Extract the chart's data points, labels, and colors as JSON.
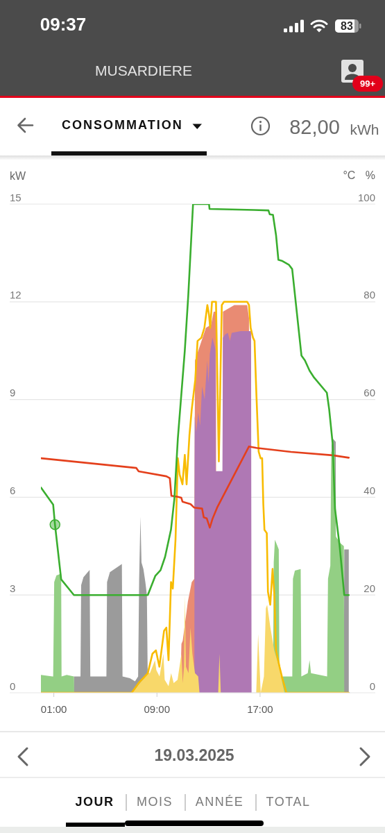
{
  "chart_data": {
    "type": "area",
    "title": "CONSOMMATION",
    "subtitle": "19.03.2025",
    "ylabel": "kW",
    "y2label": "°C %",
    "annotations": [
      "09:37",
      "83",
      "MUSARDIERE",
      "99+",
      "82,00",
      "kWh",
      "JOUR",
      "MOIS",
      "ANNÉE",
      "TOTAL"
    ],
    "xlim": [
      0,
      24
    ],
    "xticks": [
      {
        "value": 1,
        "label": "01:00"
      },
      {
        "value": 9,
        "label": "09:00"
      },
      {
        "value": 17,
        "label": "17:00"
      }
    ],
    "ylim": [
      0,
      15
    ],
    "yticks": [
      0,
      3,
      6,
      9,
      12,
      15
    ],
    "y2lim": [
      0,
      100
    ],
    "y2ticks": [
      0,
      20,
      40,
      60,
      80,
      100
    ],
    "grid": "y",
    "series": [
      {
        "color": "#9b9b9b",
        "x": [
          2.54,
          2.56,
          3.07,
          3.12,
          3.3,
          3.78,
          3.83,
          4.5,
          5.08,
          5.13,
          5.35,
          6.28,
          6.33,
          6.9,
          7.3,
          7.54,
          7.62,
          7.72,
          7.8,
          7.95,
          8.1,
          8.22,
          8.27,
          8.3,
          11.88,
          11.92,
          11.96,
          22.5,
          22.55,
          22.65,
          22.87,
          22.9,
          23.5,
          23.53,
          23.88
        ],
        "values": [
          0,
          0.5,
          0.5,
          3.3,
          3.55,
          3.77,
          0.5,
          0.5,
          0.5,
          3.4,
          3.7,
          3.95,
          0.5,
          0.45,
          0.35,
          0.5,
          3.5,
          5.4,
          4.0,
          3.8,
          3.4,
          3.0,
          1.0,
          0,
          0,
          8.6,
          0,
          0,
          7.6,
          7.8,
          7.7,
          0,
          0,
          4.4,
          4.4
        ]
      },
      {
        "color": "#e98b73",
        "x": [
          10.8,
          10.9,
          11.0,
          11.2,
          11.4,
          11.7,
          11.9,
          11.95,
          12.8,
          13.2,
          13.4,
          13.58,
          13.6,
          14.1,
          14.12,
          15.0,
          16.0,
          16.14
        ],
        "values": [
          0,
          1.5,
          1.6,
          2.2,
          2.8,
          3.4,
          3.5,
          10.2,
          11.2,
          11.3,
          11.7,
          11.7,
          0,
          0,
          11.7,
          11.9,
          11.9,
          11.5
        ]
      },
      {
        "color": "#af78b4",
        "x": [
          11.9,
          11.93,
          12.05,
          12.2,
          12.35,
          12.5,
          12.7,
          12.9,
          13.0,
          13.1,
          13.3,
          13.5,
          13.54,
          13.56,
          14.08,
          14.12,
          14.3,
          14.5,
          14.66,
          14.8,
          15.5,
          16.0,
          16.3,
          16.34
        ],
        "values": [
          0,
          8.5,
          8.0,
          8.6,
          8.2,
          9.4,
          9.0,
          10.2,
          9.5,
          10.4,
          10.9,
          10.6,
          10.5,
          6.8,
          6.8,
          10.9,
          11.0,
          11.05,
          10.8,
          11.05,
          11.1,
          11.1,
          11.1,
          0
        ]
      },
      {
        "color": "#93cf84",
        "x": [
          0,
          0.9,
          0.95,
          1.03,
          1.2,
          1.57,
          1.6,
          2.0,
          2.56,
          2.58,
          18.0,
          18.06,
          18.15,
          18.35,
          18.45,
          18.5,
          19.5,
          19.55,
          19.7,
          20.15,
          20.2,
          20.7,
          20.84,
          20.95,
          22.2,
          22.27,
          22.45,
          22.52,
          22.8,
          22.87,
          23.2,
          23.5,
          23.53
        ],
        "values": [
          0.55,
          0.5,
          0.5,
          3.4,
          3.6,
          3.66,
          0.5,
          0.55,
          0.5,
          0,
          0,
          4.0,
          4.7,
          4.5,
          4.4,
          0.5,
          0.5,
          3.5,
          3.75,
          3.8,
          0.5,
          0.6,
          1.0,
          0.6,
          0.5,
          3.5,
          3.9,
          7.4,
          7.45,
          4.8,
          4.6,
          4.5,
          0
        ]
      },
      {
        "color": "#f8d86a",
        "x": [
          7.0,
          7.3,
          7.58,
          8.0,
          8.29,
          8.45,
          8.65,
          8.85,
          8.95,
          9.2,
          9.5,
          9.6,
          9.9,
          10.1,
          10.3,
          10.6,
          10.9,
          11.0,
          11.1,
          11.16,
          11.25,
          11.45,
          11.6,
          11.75,
          11.95,
          12.2,
          12.3,
          13.75,
          13.85,
          13.95,
          16.7,
          16.85,
          17.05,
          17.3,
          17.45,
          17.55,
          17.8,
          18.1,
          18.5,
          18.75,
          18.9
        ],
        "values": [
          0,
          0.1,
          0.25,
          0.45,
          0.6,
          0.6,
          0.8,
          1.0,
          0.7,
          0.5,
          1.2,
          0.4,
          0.2,
          0.6,
          0.3,
          0.4,
          1.2,
          0.3,
          0.8,
          3.0,
          0.8,
          0.6,
          2.0,
          1.2,
          0.6,
          0.5,
          0,
          0,
          1.2,
          0,
          0,
          1.8,
          0,
          0.5,
          2.6,
          2.7,
          2.0,
          1.3,
          0.75,
          0.25,
          0
        ]
      },
      {
        "type": "line",
        "color": "#f8bb00",
        "x": [
          0,
          7.04,
          7.58,
          8.29,
          8.65,
          8.92,
          9.19,
          9.55,
          9.73,
          9.9,
          10.09,
          10.23,
          10.44,
          10.62,
          10.76,
          10.98,
          11.16,
          11.3,
          11.52,
          11.7,
          11.97,
          12.15,
          12.45,
          12.68,
          12.91,
          13.04,
          13.13,
          13.27,
          13.4,
          13.58,
          13.8,
          14.03,
          14.2,
          16.0,
          16.14,
          16.27,
          16.45,
          16.57,
          16.72,
          16.89,
          17.04,
          17.16,
          17.25,
          17.34,
          17.52,
          17.61,
          17.79,
          17.97,
          18.11,
          18.24,
          18.51,
          18.69,
          19.04,
          23.88
        ],
        "values": [
          0,
          0,
          0.3,
          0.6,
          1.2,
          1.3,
          0.8,
          1.9,
          2.0,
          1.0,
          3.4,
          3.2,
          4.7,
          7.2,
          6.7,
          6.4,
          7.3,
          6.4,
          7.9,
          8.7,
          9.6,
          10.8,
          10.9,
          11.2,
          11.9,
          11.6,
          11.2,
          12.0,
          12.0,
          12.0,
          7.1,
          11.9,
          12.0,
          12.0,
          11.9,
          11.2,
          10.9,
          10.8,
          9.1,
          7.4,
          7.2,
          7.2,
          5.8,
          5.0,
          4.9,
          3.1,
          2.7,
          3.8,
          3.0,
          1.3,
          0.8,
          0.5,
          0,
          0
        ]
      },
      {
        "type": "line",
        "axis": "y2",
        "color": "#e4401c",
        "x": [
          0,
          7.4,
          7.58,
          9.73,
          10.0,
          10.12,
          10.62,
          10.89,
          10.98,
          11.61,
          11.88,
          12.5,
          12.63,
          12.86,
          13.1,
          13.31,
          13.67,
          16.14,
          16.72,
          19.4,
          22.63,
          23.88
        ],
        "values": [
          48,
          46,
          45.3,
          44.3,
          43.9,
          40.3,
          40.1,
          39.9,
          39.1,
          38.6,
          37.9,
          37.7,
          35.9,
          35.7,
          33.8,
          35.6,
          37.9,
          50.4,
          50.1,
          49.3,
          48.6,
          48.1
        ]
      },
      {
        "type": "line",
        "axis": "y2",
        "color": "#3aae2f",
        "x": [
          0,
          0.95,
          1.09,
          1.57,
          2.56,
          8.29,
          8.87,
          9.28,
          9.63,
          10.09,
          10.35,
          10.62,
          11.16,
          11.43,
          11.8,
          13.04,
          13.08,
          14.83,
          16.54,
          17.65,
          17.75,
          18.0,
          18.24,
          18.42,
          18.69,
          19.23,
          19.49,
          20.21,
          20.48,
          20.84,
          21.19,
          22.18,
          22.36,
          22.63,
          22.81,
          23.17,
          23.53,
          23.88
        ],
        "values": [
          42,
          38.5,
          34.4,
          23.2,
          20,
          20,
          23.9,
          25.1,
          27.8,
          33.4,
          39.6,
          52,
          70,
          81.3,
          100,
          100,
          99,
          98.9,
          98.8,
          98.7,
          97.9,
          97.8,
          93.6,
          88.6,
          88.4,
          87.6,
          86.7,
          69,
          68,
          65.9,
          64.5,
          61.4,
          58,
          51,
          37.7,
          30.1,
          20,
          20
        ]
      },
      {
        "type": "scatter",
        "axis": "y2",
        "color": "#3aae2f",
        "marker": "circle",
        "x": [
          1.09
        ],
        "values": [
          34.4
        ]
      }
    ]
  }
}
